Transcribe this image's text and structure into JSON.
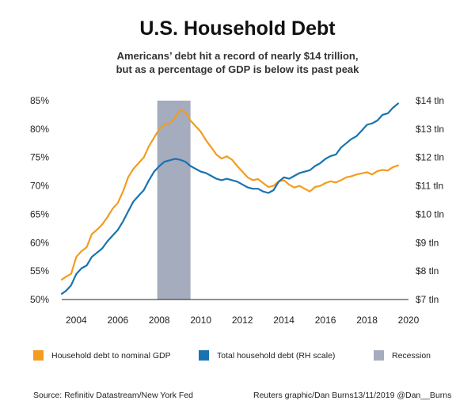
{
  "title": "U.S. Household Debt",
  "subtitle": {
    "line1": "Americans’ debt hit a record of nearly $14 trillion,",
    "line2": "but as a percentage of GDP is below its past peak"
  },
  "colors": {
    "gdp_series": "#f39c1f",
    "debt_series": "#1a73b0",
    "recession": "#a4acbd",
    "axis": "#222222"
  },
  "legend": {
    "gdp": "Household debt to nominal GDP",
    "debt": "Total household debt (RH scale)",
    "recession": "Recession"
  },
  "footer": {
    "source": "Source: Refinitiv Datastream/New York Fed",
    "credit": "Reuters graphic/Dan Burns13/11/2019 @Dan__Burns"
  },
  "chart_data": {
    "type": "line",
    "title": "U.S. Household Debt",
    "xlim": [
      2003.3,
      2020
    ],
    "x_ticks": [
      2004,
      2006,
      2008,
      2010,
      2012,
      2014,
      2016,
      2018,
      2020
    ],
    "x_tick_labels": [
      "2004",
      "2006",
      "2008",
      "2010",
      "2012",
      "2014",
      "2016",
      "2018",
      "2020"
    ],
    "y_left": {
      "lim": [
        50,
        85
      ],
      "ticks": [
        50,
        55,
        60,
        65,
        70,
        75,
        80,
        85
      ],
      "tick_labels": [
        "50%",
        "55%",
        "60%",
        "65%",
        "70%",
        "75%",
        "80%",
        "85%"
      ]
    },
    "y_right": {
      "lim": [
        7,
        14
      ],
      "ticks": [
        7,
        8,
        9,
        10,
        11,
        12,
        13,
        14
      ],
      "tick_labels": [
        "$7 tln",
        "$8 tln",
        "$9 tln",
        "$10 tln",
        "$11 tln",
        "$12 tln",
        "$13 tln",
        "$14 tln"
      ]
    },
    "recession": {
      "start": 2007.9,
      "end": 2009.5,
      "label": "Recession"
    },
    "series": [
      {
        "name": "Household debt to nominal GDP",
        "axis": "left",
        "points": [
          [
            2003.3,
            53.5
          ],
          [
            2003.5,
            54.0
          ],
          [
            2003.75,
            54.5
          ],
          [
            2004.0,
            57.5
          ],
          [
            2004.25,
            58.5
          ],
          [
            2004.5,
            59.2
          ],
          [
            2004.75,
            61.5
          ],
          [
            2005.0,
            62.3
          ],
          [
            2005.25,
            63.2
          ],
          [
            2005.5,
            64.5
          ],
          [
            2005.75,
            66.0
          ],
          [
            2006.0,
            67.0
          ],
          [
            2006.25,
            69.0
          ],
          [
            2006.5,
            71.5
          ],
          [
            2006.75,
            73.0
          ],
          [
            2007.0,
            74.0
          ],
          [
            2007.25,
            75.0
          ],
          [
            2007.5,
            77.0
          ],
          [
            2007.75,
            78.5
          ],
          [
            2008.0,
            80.0
          ],
          [
            2008.25,
            80.8
          ],
          [
            2008.5,
            81.0
          ],
          [
            2008.75,
            82.0
          ],
          [
            2009.0,
            83.3
          ],
          [
            2009.25,
            83.0
          ],
          [
            2009.5,
            81.5
          ],
          [
            2009.75,
            80.5
          ],
          [
            2010.0,
            79.5
          ],
          [
            2010.25,
            78.0
          ],
          [
            2010.5,
            76.8
          ],
          [
            2010.75,
            75.5
          ],
          [
            2011.0,
            74.8
          ],
          [
            2011.25,
            75.2
          ],
          [
            2011.5,
            74.6
          ],
          [
            2011.75,
            73.5
          ],
          [
            2012.0,
            72.5
          ],
          [
            2012.25,
            71.5
          ],
          [
            2012.5,
            71.0
          ],
          [
            2012.75,
            71.2
          ],
          [
            2013.0,
            70.5
          ],
          [
            2013.25,
            69.8
          ],
          [
            2013.5,
            70.0
          ],
          [
            2013.75,
            70.8
          ],
          [
            2014.0,
            71.0
          ],
          [
            2014.25,
            70.2
          ],
          [
            2014.5,
            69.7
          ],
          [
            2014.75,
            70.0
          ],
          [
            2015.0,
            69.5
          ],
          [
            2015.25,
            69.0
          ],
          [
            2015.5,
            69.8
          ],
          [
            2015.75,
            70.0
          ],
          [
            2016.0,
            70.5
          ],
          [
            2016.25,
            70.8
          ],
          [
            2016.5,
            70.6
          ],
          [
            2016.75,
            71.0
          ],
          [
            2017.0,
            71.5
          ],
          [
            2017.25,
            71.7
          ],
          [
            2017.5,
            72.0
          ],
          [
            2017.75,
            72.2
          ],
          [
            2018.0,
            72.4
          ],
          [
            2018.25,
            72.0
          ],
          [
            2018.5,
            72.6
          ],
          [
            2018.75,
            72.8
          ],
          [
            2019.0,
            72.7
          ],
          [
            2019.25,
            73.3
          ],
          [
            2019.5,
            73.6
          ]
        ]
      },
      {
        "name": "Total household debt (RH scale)",
        "axis": "right",
        "points": [
          [
            2003.3,
            7.2
          ],
          [
            2003.5,
            7.3
          ],
          [
            2003.75,
            7.5
          ],
          [
            2004.0,
            7.9
          ],
          [
            2004.25,
            8.1
          ],
          [
            2004.5,
            8.2
          ],
          [
            2004.75,
            8.5
          ],
          [
            2005.0,
            8.65
          ],
          [
            2005.25,
            8.8
          ],
          [
            2005.5,
            9.05
          ],
          [
            2005.75,
            9.25
          ],
          [
            2006.0,
            9.45
          ],
          [
            2006.25,
            9.75
          ],
          [
            2006.5,
            10.1
          ],
          [
            2006.75,
            10.45
          ],
          [
            2007.0,
            10.65
          ],
          [
            2007.25,
            10.85
          ],
          [
            2007.5,
            11.2
          ],
          [
            2007.75,
            11.5
          ],
          [
            2008.0,
            11.7
          ],
          [
            2008.25,
            11.85
          ],
          [
            2008.5,
            11.9
          ],
          [
            2008.75,
            11.95
          ],
          [
            2009.0,
            11.92
          ],
          [
            2009.25,
            11.85
          ],
          [
            2009.5,
            11.7
          ],
          [
            2009.75,
            11.6
          ],
          [
            2010.0,
            11.5
          ],
          [
            2010.25,
            11.45
          ],
          [
            2010.5,
            11.35
          ],
          [
            2010.75,
            11.25
          ],
          [
            2011.0,
            11.2
          ],
          [
            2011.25,
            11.25
          ],
          [
            2011.5,
            11.2
          ],
          [
            2011.75,
            11.15
          ],
          [
            2012.0,
            11.05
          ],
          [
            2012.25,
            10.95
          ],
          [
            2012.5,
            10.9
          ],
          [
            2012.75,
            10.9
          ],
          [
            2013.0,
            10.8
          ],
          [
            2013.25,
            10.75
          ],
          [
            2013.5,
            10.85
          ],
          [
            2013.75,
            11.15
          ],
          [
            2014.0,
            11.3
          ],
          [
            2014.25,
            11.25
          ],
          [
            2014.5,
            11.35
          ],
          [
            2014.75,
            11.45
          ],
          [
            2015.0,
            11.5
          ],
          [
            2015.25,
            11.55
          ],
          [
            2015.5,
            11.7
          ],
          [
            2015.75,
            11.8
          ],
          [
            2016.0,
            11.95
          ],
          [
            2016.25,
            12.05
          ],
          [
            2016.5,
            12.1
          ],
          [
            2016.75,
            12.35
          ],
          [
            2017.0,
            12.5
          ],
          [
            2017.25,
            12.65
          ],
          [
            2017.5,
            12.75
          ],
          [
            2017.75,
            12.95
          ],
          [
            2018.0,
            13.15
          ],
          [
            2018.25,
            13.2
          ],
          [
            2018.5,
            13.3
          ],
          [
            2018.75,
            13.5
          ],
          [
            2019.0,
            13.55
          ],
          [
            2019.25,
            13.75
          ],
          [
            2019.5,
            13.9
          ]
        ]
      }
    ]
  }
}
